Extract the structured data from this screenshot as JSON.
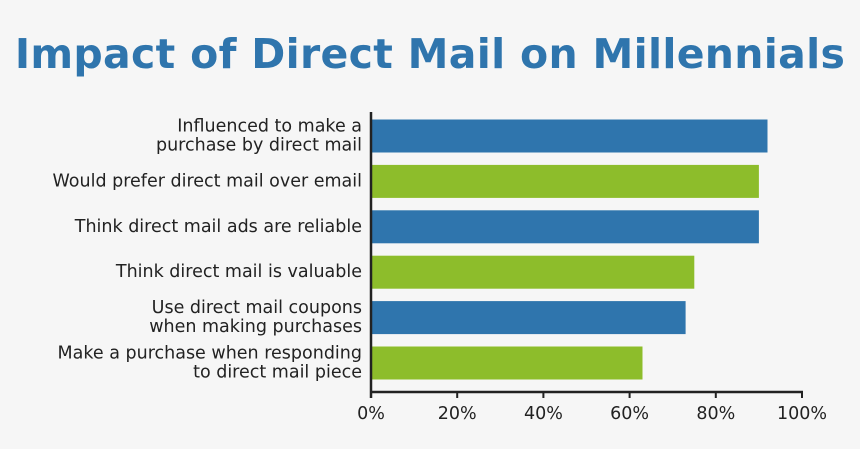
{
  "colors": {
    "title": "#2f75ad",
    "blue": "#2f75ad",
    "green": "#8dbd2b",
    "axis": "#222222",
    "background": "#f6f6f6"
  },
  "chart_data": {
    "type": "bar",
    "orientation": "horizontal",
    "title": "Impact of Direct Mail on Millennials",
    "xlabel": "",
    "ylabel": "",
    "xlim": [
      0,
      100
    ],
    "x_ticks": [
      "0%",
      "20%",
      "40%",
      "60%",
      "80%",
      "100%"
    ],
    "grid": false,
    "legend": "none",
    "categories": [
      [
        "Influenced to make a",
        "purchase by direct mail"
      ],
      [
        "Would prefer direct mail over email"
      ],
      [
        "Think direct mail ads are reliable"
      ],
      [
        "Think direct mail is valuable"
      ],
      [
        "Use direct mail coupons",
        "when making purchases"
      ],
      [
        "Make a purchase when responding",
        "to direct mail piece"
      ]
    ],
    "values": [
      92,
      90,
      90,
      75,
      73,
      63
    ],
    "bar_colors": [
      "blue",
      "green",
      "blue",
      "green",
      "blue",
      "green"
    ]
  }
}
